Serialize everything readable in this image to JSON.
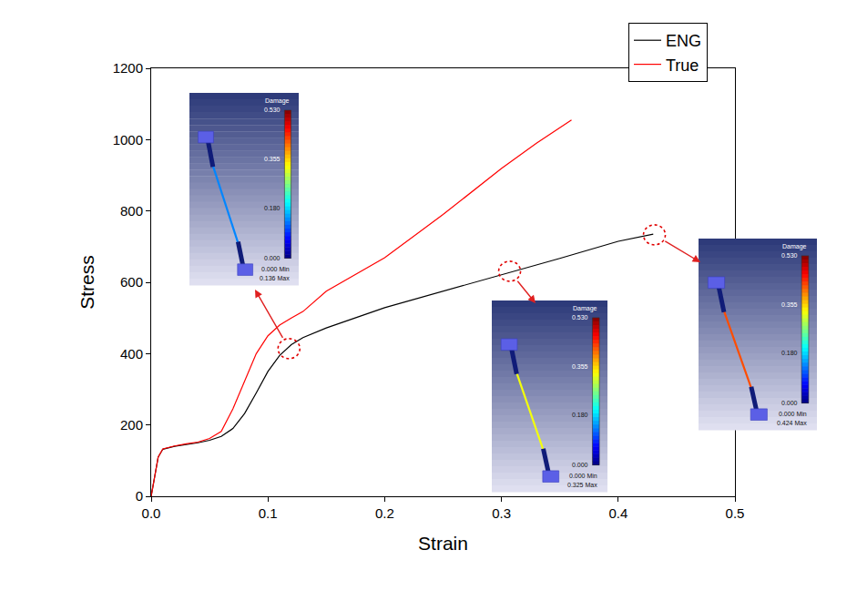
{
  "chart_data": {
    "type": "line",
    "x_label": "Strain",
    "y_label": "Stress",
    "xlim": [
      0,
      0.5
    ],
    "xticks": [
      {
        "value": 0,
        "label": "0.0"
      },
      0.1,
      0.2,
      0.3,
      0.4,
      0.5
    ],
    "ylim": [
      0,
      1200
    ],
    "yticks": [
      0,
      200,
      400,
      600,
      800,
      1000,
      1200
    ],
    "grid": false,
    "legend": "top right",
    "series": [
      {
        "name": "ENG",
        "color": "#000000",
        "x": [
          0,
          0.003,
          0.006,
          0.01,
          0.02,
          0.03,
          0.04,
          0.05,
          0.06,
          0.07,
          0.08,
          0.09,
          0.1,
          0.11,
          0.12,
          0.13,
          0.15,
          0.2,
          0.25,
          0.3,
          0.35,
          0.4,
          0.43
        ],
        "values": [
          0,
          60,
          110,
          132,
          140,
          145,
          150,
          157,
          168,
          190,
          232,
          290,
          350,
          395,
          425,
          445,
          472,
          529,
          575,
          620,
          667,
          715,
          735
        ]
      },
      {
        "name": "True",
        "color": "#ff0000",
        "x": [
          0,
          0.003,
          0.006,
          0.01,
          0.02,
          0.03,
          0.04,
          0.05,
          0.06,
          0.07,
          0.08,
          0.09,
          0.1,
          0.11,
          0.12,
          0.13,
          0.15,
          0.2,
          0.25,
          0.3,
          0.33,
          0.36
        ],
        "values": [
          0,
          60,
          110,
          133,
          141,
          147,
          152,
          162,
          182,
          245,
          322,
          400,
          450,
          480,
          500,
          518,
          575,
          669,
          790,
          919,
          990,
          1055
        ]
      }
    ],
    "colorbar": {
      "title": "Damage",
      "range": [
        0,
        0.53
      ],
      "ticks": [
        {
          "value": 0.53,
          "label": "0.530"
        },
        {
          "value": 0.355,
          "label": "0.355"
        },
        {
          "value": 0.18,
          "label": "0.180"
        },
        {
          "value": 0,
          "label": "0.000"
        }
      ]
    },
    "insets": [
      {
        "point": {
          "x": 0.118,
          "y": 414
        },
        "min": {
          "value": 0,
          "label": "0.000 Min"
        },
        "max": {
          "value": 0.136,
          "label": "0.136 Max"
        }
      },
      {
        "point": {
          "x": 0.307,
          "y": 631
        },
        "min": {
          "value": 0,
          "label": "0.000 Min"
        },
        "max": {
          "value": 0.325,
          "label": "0.325 Max"
        }
      },
      {
        "point": {
          "x": 0.431,
          "y": 733
        },
        "min": {
          "value": 0,
          "label": "0.000 Min"
        },
        "max": {
          "value": 0.424,
          "label": "0.424 Max"
        }
      }
    ]
  }
}
